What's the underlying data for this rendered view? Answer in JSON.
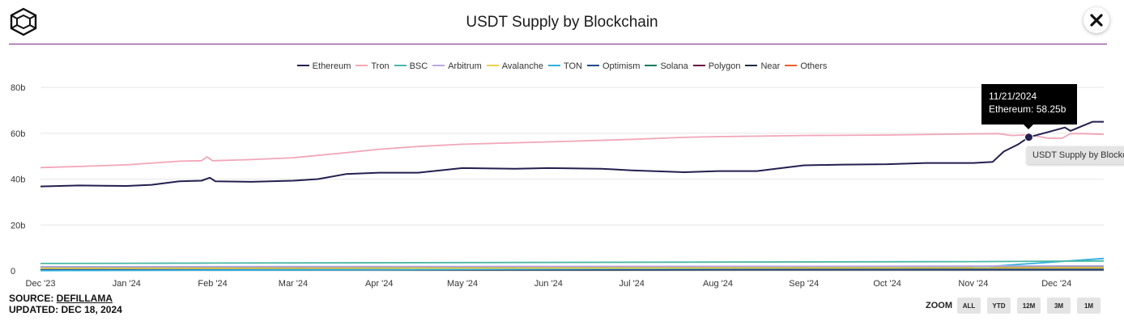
{
  "header": {
    "title": "USDT Supply by Blockchain",
    "logo_icon": "cube-logo-icon",
    "close_icon": "close-icon"
  },
  "source": {
    "prefix": "SOURCE: ",
    "name": "DEFILLAMA",
    "updated": "UPDATED: DEC 18, 2024"
  },
  "zoom": {
    "label": "ZOOM",
    "buttons": [
      "ALL",
      "YTD",
      "12M",
      "3M",
      "1M"
    ]
  },
  "tooltip": {
    "date": "11/21/2024",
    "text": "Ethereum: 58.25b"
  },
  "hover_label": "USDT Supply by Blockchain",
  "chart_data": {
    "type": "line",
    "title": "USDT Supply by Blockchain",
    "xlabel": "",
    "ylabel": "",
    "ylim": [
      0,
      80
    ],
    "y_ticks": [
      "0",
      "20b",
      "40b",
      "60b",
      "80b"
    ],
    "x_ticks": [
      "Dec '23",
      "Jan '24",
      "Feb '24",
      "Mar '24",
      "Apr '24",
      "May '24",
      "Jun '24",
      "Jul '24",
      "Aug '24",
      "Sep '24",
      "Oct '24",
      "Nov '24",
      "Dec '24"
    ],
    "x_range": [
      "2023-12-01",
      "2024-12-18"
    ],
    "grid": true,
    "legend_position": "top-center",
    "highlight": {
      "series": "Ethereum",
      "date": "2024-11-21",
      "value": 58.25
    },
    "series": [
      {
        "name": "Ethereum",
        "color": "#231f4f",
        "points": [
          [
            "2023-12-01",
            36.8
          ],
          [
            "2023-12-15",
            37.2
          ],
          [
            "2024-01-01",
            37.0
          ],
          [
            "2024-01-10",
            37.5
          ],
          [
            "2024-01-20",
            39.0
          ],
          [
            "2024-01-28",
            39.3
          ],
          [
            "2024-01-31",
            40.6
          ],
          [
            "2024-02-02",
            39.0
          ],
          [
            "2024-02-15",
            38.8
          ],
          [
            "2024-03-01",
            39.3
          ],
          [
            "2024-03-10",
            40.0
          ],
          [
            "2024-03-20",
            42.2
          ],
          [
            "2024-04-01",
            42.8
          ],
          [
            "2024-04-15",
            42.8
          ],
          [
            "2024-05-01",
            44.8
          ],
          [
            "2024-05-20",
            44.5
          ],
          [
            "2024-06-01",
            44.8
          ],
          [
            "2024-06-20",
            44.5
          ],
          [
            "2024-07-01",
            43.8
          ],
          [
            "2024-07-20",
            43.0
          ],
          [
            "2024-08-01",
            43.5
          ],
          [
            "2024-08-15",
            43.5
          ],
          [
            "2024-09-01",
            46.0
          ],
          [
            "2024-09-15",
            46.3
          ],
          [
            "2024-10-01",
            46.5
          ],
          [
            "2024-10-15",
            47.0
          ],
          [
            "2024-11-01",
            47.0
          ],
          [
            "2024-11-08",
            47.5
          ],
          [
            "2024-11-12",
            52.0
          ],
          [
            "2024-11-17",
            55.0
          ],
          [
            "2024-11-21",
            58.25
          ],
          [
            "2024-11-28",
            60.5
          ],
          [
            "2024-12-04",
            62.5
          ],
          [
            "2024-12-06",
            61.0
          ],
          [
            "2024-12-10",
            63.0
          ],
          [
            "2024-12-14",
            65.0
          ],
          [
            "2024-12-18",
            65.0
          ]
        ]
      },
      {
        "name": "Tron",
        "color": "#f2a6b8",
        "points": [
          [
            "2023-12-01",
            45.0
          ],
          [
            "2023-12-15",
            45.5
          ],
          [
            "2024-01-01",
            46.2
          ],
          [
            "2024-01-20",
            47.8
          ],
          [
            "2024-01-28",
            48.0
          ],
          [
            "2024-01-30",
            49.7
          ],
          [
            "2024-02-01",
            48.0
          ],
          [
            "2024-02-15",
            48.5
          ],
          [
            "2024-03-01",
            49.3
          ],
          [
            "2024-03-20",
            51.5
          ],
          [
            "2024-04-01",
            53.0
          ],
          [
            "2024-04-15",
            54.2
          ],
          [
            "2024-05-01",
            55.2
          ],
          [
            "2024-06-01",
            56.2
          ],
          [
            "2024-07-01",
            57.3
          ],
          [
            "2024-07-20",
            58.2
          ],
          [
            "2024-08-01",
            58.5
          ],
          [
            "2024-09-01",
            59.0
          ],
          [
            "2024-10-01",
            59.2
          ],
          [
            "2024-11-01",
            59.7
          ],
          [
            "2024-11-10",
            59.8
          ],
          [
            "2024-11-15",
            59.0
          ],
          [
            "2024-11-21",
            59.3
          ],
          [
            "2024-11-28",
            57.8
          ],
          [
            "2024-12-03",
            57.8
          ],
          [
            "2024-12-06",
            59.8
          ],
          [
            "2024-12-10",
            59.8
          ],
          [
            "2024-12-18",
            59.5
          ]
        ]
      },
      {
        "name": "BSC",
        "color": "#4ab8a6",
        "points": [
          [
            "2023-12-01",
            3.2
          ],
          [
            "2024-02-01",
            3.4
          ],
          [
            "2024-05-01",
            3.6
          ],
          [
            "2024-08-01",
            3.8
          ],
          [
            "2024-11-01",
            4.0
          ],
          [
            "2024-12-18",
            4.3
          ]
        ]
      },
      {
        "name": "Arbitrum",
        "color": "#b9a8e0",
        "points": [
          [
            "2023-12-01",
            1.8
          ],
          [
            "2024-05-01",
            1.9
          ],
          [
            "2024-10-01",
            2.0
          ],
          [
            "2024-12-18",
            2.2
          ]
        ]
      },
      {
        "name": "Avalanche",
        "color": "#f0d04a",
        "points": [
          [
            "2023-12-01",
            1.1
          ],
          [
            "2024-12-18",
            1.3
          ]
        ]
      },
      {
        "name": "TON",
        "color": "#2fb0de",
        "points": [
          [
            "2023-12-01",
            0.1
          ],
          [
            "2024-04-01",
            0.5
          ],
          [
            "2024-07-01",
            1.0
          ],
          [
            "2024-11-01",
            1.4
          ],
          [
            "2024-12-18",
            5.4
          ]
        ]
      },
      {
        "name": "Optimism",
        "color": "#1f4a8a",
        "points": [
          [
            "2023-12-01",
            0.6
          ],
          [
            "2024-12-18",
            0.7
          ]
        ]
      },
      {
        "name": "Solana",
        "color": "#1a7a5e",
        "points": [
          [
            "2023-12-01",
            1.6
          ],
          [
            "2024-06-01",
            1.8
          ],
          [
            "2024-12-18",
            2.0
          ]
        ]
      },
      {
        "name": "Polygon",
        "color": "#6a1440",
        "points": [
          [
            "2023-12-01",
            0.9
          ],
          [
            "2024-12-18",
            0.95
          ]
        ]
      },
      {
        "name": "Near",
        "color": "#1f3040",
        "points": [
          [
            "2023-12-01",
            0.4
          ],
          [
            "2024-12-18",
            0.45
          ]
        ]
      },
      {
        "name": "Others",
        "color": "#e8622a",
        "points": [
          [
            "2023-12-01",
            1.4
          ],
          [
            "2024-12-18",
            1.5
          ]
        ]
      }
    ]
  }
}
